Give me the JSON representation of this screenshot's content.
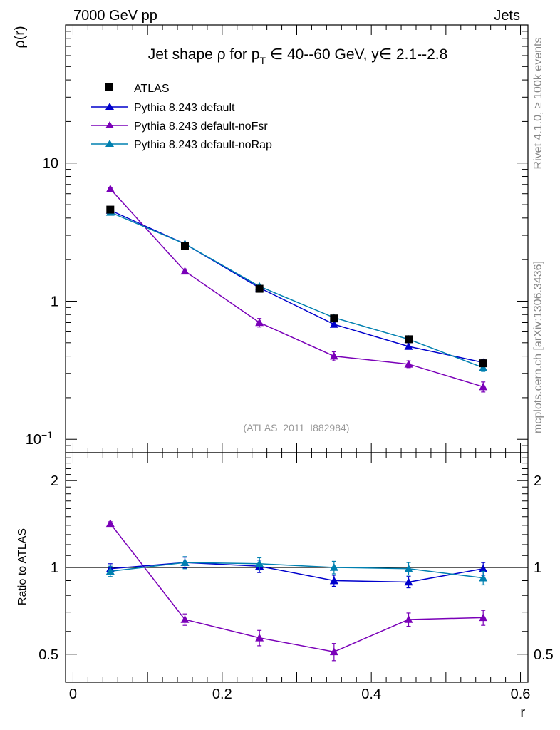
{
  "header": {
    "energy_label": "7000 GeV pp",
    "category": "Jets"
  },
  "side_labels": {
    "rivet": "Rivet 4.1.0, ≥ 100k events",
    "source": "mcplots.cern.ch [arXiv:1306.3436]"
  },
  "colors": {
    "atlas": "#000000",
    "default": "#0000cc",
    "noFsr": "#7a00b8",
    "noRap": "#0080b0"
  },
  "chart_data": [
    {
      "type": "line",
      "panel": "main",
      "title_parts": {
        "prefix": "Jet shape ρ for p",
        "sub": "T",
        "suffix": " ∈ 40--60 GeV, y∈ 2.1--2.8"
      },
      "ylabel": "ρ(r)",
      "yscale": "log",
      "ylim": [
        0.08,
        100
      ],
      "xlim": [
        -0.01,
        0.61
      ],
      "xticks": [
        "0",
        "0.2",
        "0.4",
        "0.6"
      ],
      "xtick_values": [
        0,
        0.2,
        0.4,
        0.6
      ],
      "yticks": [
        {
          "value": 10,
          "label": "10"
        },
        {
          "value": 1,
          "label": "1"
        },
        {
          "value": 0.1,
          "label": "10",
          "sup": "−1"
        }
      ],
      "analysis_tag": "(ATLAS_2011_I882984)",
      "x": [
        0.05,
        0.15,
        0.25,
        0.35,
        0.45,
        0.55
      ],
      "series": [
        {
          "key": "default",
          "name": "Pythia 8.243 default",
          "marker": "triangle",
          "values": [
            4.55,
            2.6,
            1.25,
            0.68,
            0.47,
            0.36
          ],
          "errors": [
            0.1,
            0.07,
            0.04,
            0.03,
            0.02,
            0.02
          ]
        },
        {
          "key": "noFsr",
          "name": "Pythia 8.243 default-noFsr",
          "marker": "triangle",
          "values": [
            6.5,
            1.65,
            0.7,
            0.4,
            0.35,
            0.24
          ],
          "errors": [
            0.12,
            0.06,
            0.05,
            0.03,
            0.02,
            0.02
          ]
        },
        {
          "key": "noRap",
          "name": "Pythia 8.243 default-noRap",
          "marker": "triangle",
          "values": [
            4.4,
            2.6,
            1.28,
            0.76,
            0.53,
            0.33
          ],
          "errors": [
            0.1,
            0.07,
            0.05,
            0.03,
            0.02,
            0.02
          ]
        },
        {
          "key": "atlas",
          "name": "ATLAS",
          "marker": "square",
          "values": [
            4.6,
            2.5,
            1.23,
            0.75,
            0.53,
            0.355
          ],
          "errors": [
            0.1,
            0.06,
            0.03,
            0.02,
            0.015,
            0.01
          ]
        }
      ]
    },
    {
      "type": "line",
      "panel": "ratio",
      "ylabel": "Ratio to ATLAS",
      "xlabel": "r",
      "yscale": "log",
      "ylim": [
        0.4,
        2.5
      ],
      "yticks": [
        {
          "value": 2,
          "label": "2"
        },
        {
          "value": 1,
          "label": "1"
        },
        {
          "value": 0.5,
          "label": "0.5"
        }
      ],
      "x": [
        0.05,
        0.15,
        0.25,
        0.35,
        0.45,
        0.55
      ],
      "series": [
        {
          "key": "noFsr",
          "name": "Pythia 8.243 default-noFsr",
          "values": [
            1.42,
            0.66,
            0.57,
            0.51,
            0.66,
            0.67
          ],
          "errors": [
            0.02,
            0.03,
            0.035,
            0.035,
            0.035,
            0.04
          ]
        },
        {
          "key": "default",
          "name": "Pythia 8.243 default",
          "values": [
            0.99,
            1.04,
            1.01,
            0.9,
            0.89,
            0.99
          ],
          "errors": [
            0.04,
            0.045,
            0.05,
            0.04,
            0.04,
            0.05
          ]
        },
        {
          "key": "noRap",
          "name": "Pythia 8.243 default-noRap",
          "values": [
            0.97,
            1.04,
            1.03,
            1.0,
            0.99,
            0.92
          ],
          "errors": [
            0.04,
            0.05,
            0.05,
            0.05,
            0.05,
            0.05
          ]
        }
      ]
    }
  ]
}
